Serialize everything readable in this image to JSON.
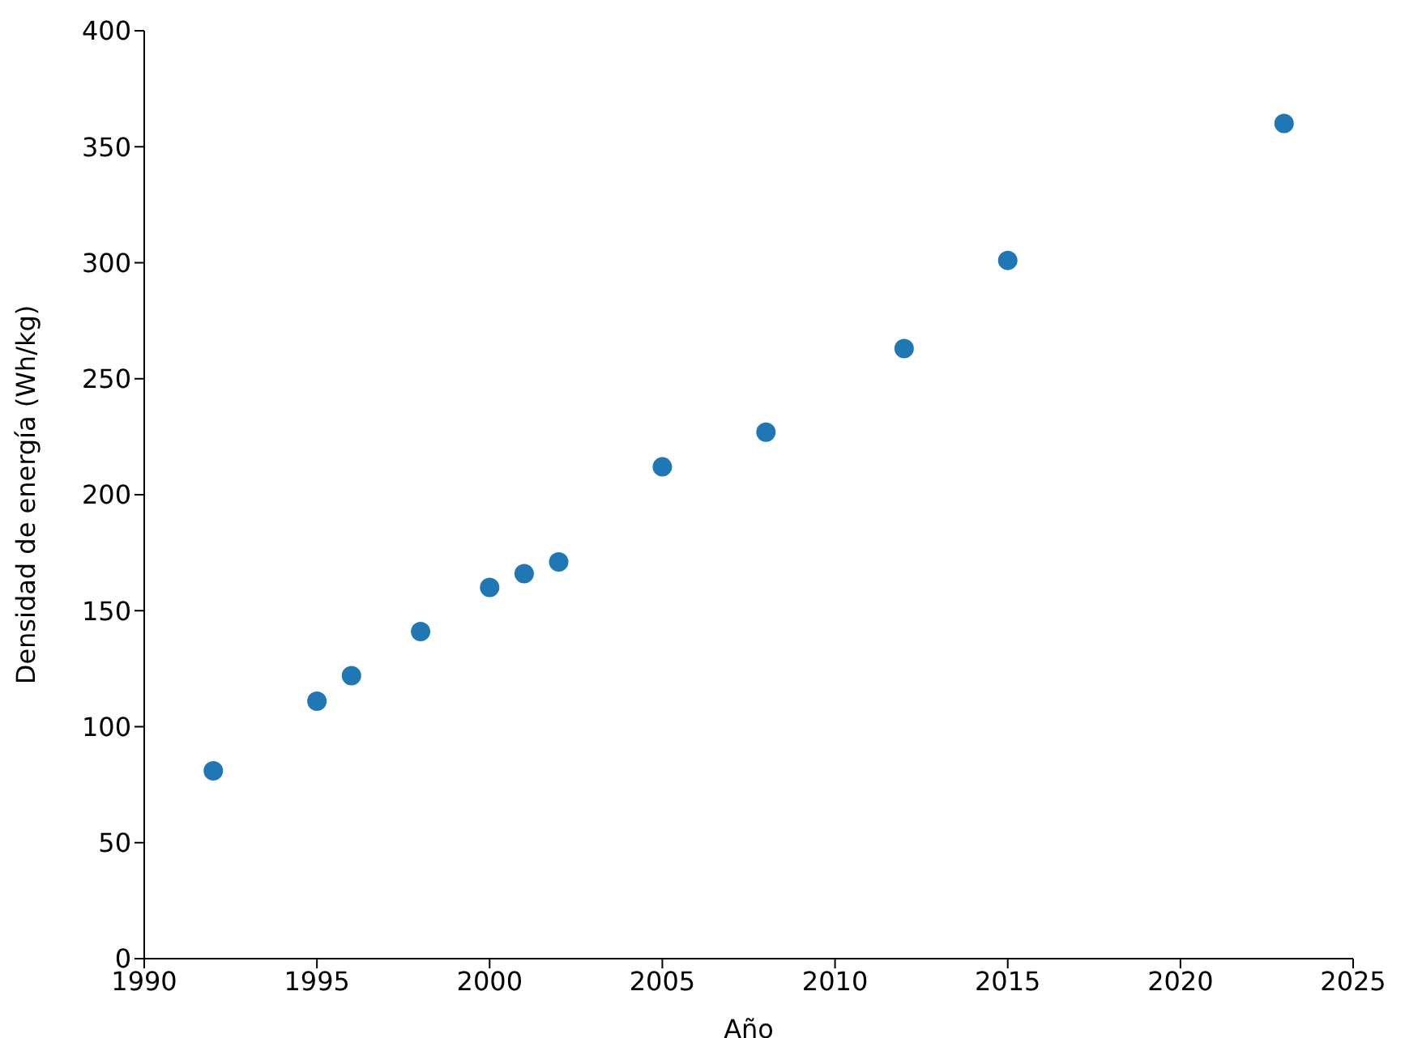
{
  "chart_data": {
    "type": "scatter",
    "xlabel": "Año",
    "ylabel": "Densidad de energía (Wh/kg)",
    "x": [
      1992,
      1995,
      1996,
      1998,
      2000,
      2001,
      2002,
      2005,
      2008,
      2012,
      2015,
      2023
    ],
    "values": [
      81,
      111,
      122,
      141,
      160,
      166,
      171,
      212,
      227,
      263,
      301,
      360
    ],
    "color": "#1f77b4",
    "marker": "circle",
    "xlim": [
      1990,
      2025
    ],
    "xticks": [
      1990,
      1995,
      2000,
      2005,
      2010,
      2015,
      2020,
      2025
    ],
    "ylim": [
      0,
      400
    ],
    "yticks": [
      0,
      50,
      100,
      150,
      200,
      250,
      300,
      350,
      400
    ],
    "grid": false
  }
}
